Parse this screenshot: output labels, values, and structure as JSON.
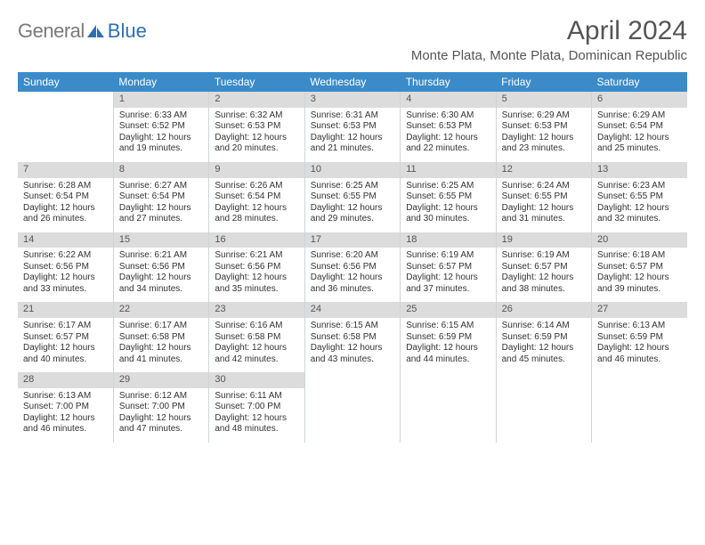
{
  "colors": {
    "header_blue": "#3b8bc9",
    "daynum_band": "#dcdcdc",
    "text": "#222222",
    "logo_grey": "#7a7a7a",
    "logo_blue": "#2f6fb0",
    "border": "#cfd4d8",
    "background": "#ffffff"
  },
  "typography": {
    "title_fontsize": 30,
    "location_fontsize": 15,
    "weekday_fontsize": 12,
    "daynum_fontsize": 11,
    "body_fontsize": 10,
    "font_family": "Arial"
  },
  "logo": {
    "part1": "General",
    "part2": "Blue"
  },
  "title": "April 2024",
  "location": "Monte Plata, Monte Plata, Dominican Republic",
  "weekdays": [
    "Sunday",
    "Monday",
    "Tuesday",
    "Wednesday",
    "Thursday",
    "Friday",
    "Saturday"
  ],
  "calendar": {
    "type": "table",
    "columns": 7,
    "rows": 5,
    "start_offset": 1,
    "days": [
      {
        "n": 1,
        "sunrise": "6:33 AM",
        "sunset": "6:52 PM",
        "daylight": "12 hours and 19 minutes."
      },
      {
        "n": 2,
        "sunrise": "6:32 AM",
        "sunset": "6:53 PM",
        "daylight": "12 hours and 20 minutes."
      },
      {
        "n": 3,
        "sunrise": "6:31 AM",
        "sunset": "6:53 PM",
        "daylight": "12 hours and 21 minutes."
      },
      {
        "n": 4,
        "sunrise": "6:30 AM",
        "sunset": "6:53 PM",
        "daylight": "12 hours and 22 minutes."
      },
      {
        "n": 5,
        "sunrise": "6:29 AM",
        "sunset": "6:53 PM",
        "daylight": "12 hours and 23 minutes."
      },
      {
        "n": 6,
        "sunrise": "6:29 AM",
        "sunset": "6:54 PM",
        "daylight": "12 hours and 25 minutes."
      },
      {
        "n": 7,
        "sunrise": "6:28 AM",
        "sunset": "6:54 PM",
        "daylight": "12 hours and 26 minutes."
      },
      {
        "n": 8,
        "sunrise": "6:27 AM",
        "sunset": "6:54 PM",
        "daylight": "12 hours and 27 minutes."
      },
      {
        "n": 9,
        "sunrise": "6:26 AM",
        "sunset": "6:54 PM",
        "daylight": "12 hours and 28 minutes."
      },
      {
        "n": 10,
        "sunrise": "6:25 AM",
        "sunset": "6:55 PM",
        "daylight": "12 hours and 29 minutes."
      },
      {
        "n": 11,
        "sunrise": "6:25 AM",
        "sunset": "6:55 PM",
        "daylight": "12 hours and 30 minutes."
      },
      {
        "n": 12,
        "sunrise": "6:24 AM",
        "sunset": "6:55 PM",
        "daylight": "12 hours and 31 minutes."
      },
      {
        "n": 13,
        "sunrise": "6:23 AM",
        "sunset": "6:55 PM",
        "daylight": "12 hours and 32 minutes."
      },
      {
        "n": 14,
        "sunrise": "6:22 AM",
        "sunset": "6:56 PM",
        "daylight": "12 hours and 33 minutes."
      },
      {
        "n": 15,
        "sunrise": "6:21 AM",
        "sunset": "6:56 PM",
        "daylight": "12 hours and 34 minutes."
      },
      {
        "n": 16,
        "sunrise": "6:21 AM",
        "sunset": "6:56 PM",
        "daylight": "12 hours and 35 minutes."
      },
      {
        "n": 17,
        "sunrise": "6:20 AM",
        "sunset": "6:56 PM",
        "daylight": "12 hours and 36 minutes."
      },
      {
        "n": 18,
        "sunrise": "6:19 AM",
        "sunset": "6:57 PM",
        "daylight": "12 hours and 37 minutes."
      },
      {
        "n": 19,
        "sunrise": "6:19 AM",
        "sunset": "6:57 PM",
        "daylight": "12 hours and 38 minutes."
      },
      {
        "n": 20,
        "sunrise": "6:18 AM",
        "sunset": "6:57 PM",
        "daylight": "12 hours and 39 minutes."
      },
      {
        "n": 21,
        "sunrise": "6:17 AM",
        "sunset": "6:57 PM",
        "daylight": "12 hours and 40 minutes."
      },
      {
        "n": 22,
        "sunrise": "6:17 AM",
        "sunset": "6:58 PM",
        "daylight": "12 hours and 41 minutes."
      },
      {
        "n": 23,
        "sunrise": "6:16 AM",
        "sunset": "6:58 PM",
        "daylight": "12 hours and 42 minutes."
      },
      {
        "n": 24,
        "sunrise": "6:15 AM",
        "sunset": "6:58 PM",
        "daylight": "12 hours and 43 minutes."
      },
      {
        "n": 25,
        "sunrise": "6:15 AM",
        "sunset": "6:59 PM",
        "daylight": "12 hours and 44 minutes."
      },
      {
        "n": 26,
        "sunrise": "6:14 AM",
        "sunset": "6:59 PM",
        "daylight": "12 hours and 45 minutes."
      },
      {
        "n": 27,
        "sunrise": "6:13 AM",
        "sunset": "6:59 PM",
        "daylight": "12 hours and 46 minutes."
      },
      {
        "n": 28,
        "sunrise": "6:13 AM",
        "sunset": "7:00 PM",
        "daylight": "12 hours and 46 minutes."
      },
      {
        "n": 29,
        "sunrise": "6:12 AM",
        "sunset": "7:00 PM",
        "daylight": "12 hours and 47 minutes."
      },
      {
        "n": 30,
        "sunrise": "6:11 AM",
        "sunset": "7:00 PM",
        "daylight": "12 hours and 48 minutes."
      }
    ]
  },
  "labels": {
    "sunrise": "Sunrise:",
    "sunset": "Sunset:",
    "daylight": "Daylight:"
  }
}
